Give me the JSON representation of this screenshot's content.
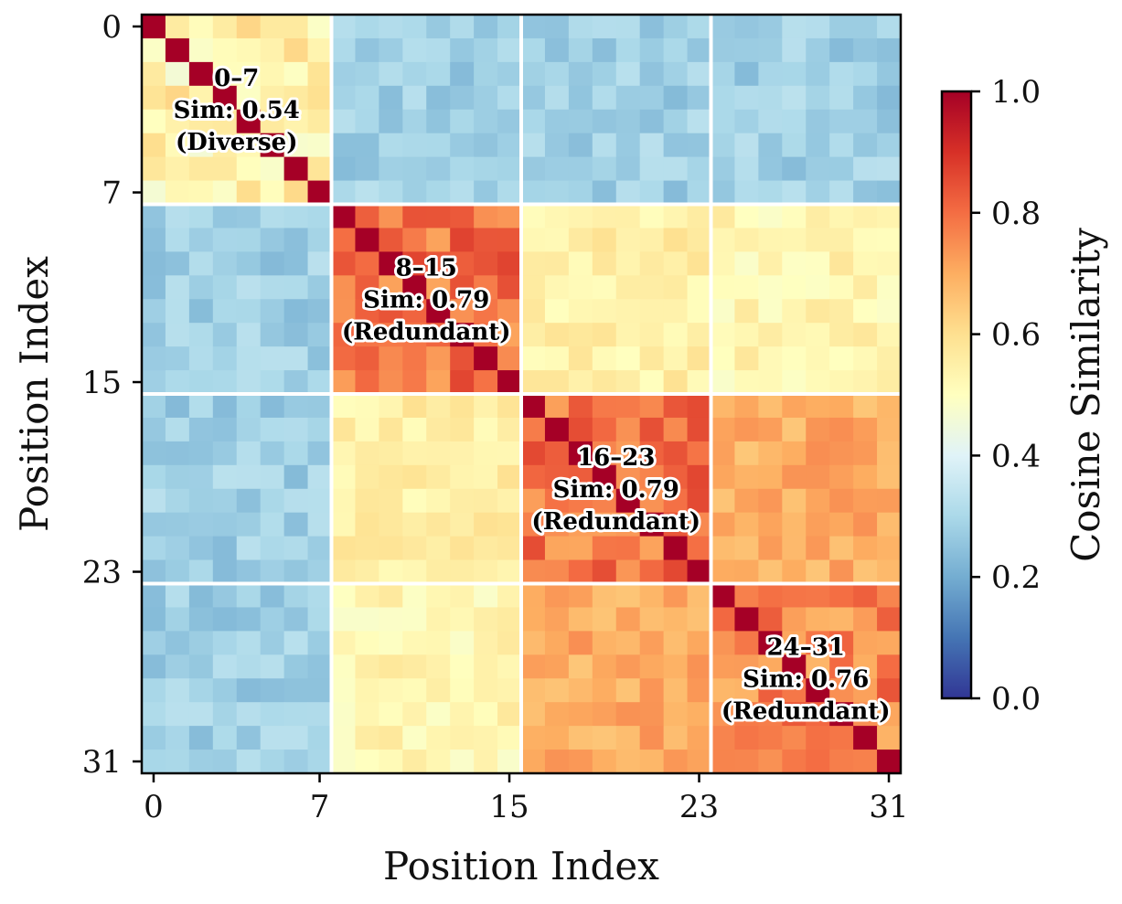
{
  "chart_data": {
    "type": "heatmap",
    "title": "",
    "xlabel": "Position Index",
    "ylabel": "Position Index",
    "n": 32,
    "x_ticks": [
      0,
      7,
      15,
      23,
      31
    ],
    "y_ticks": [
      0,
      7,
      15,
      23,
      31
    ],
    "block_boundaries": [
      7.5,
      15.5,
      23.5
    ],
    "colorbar": {
      "label": "Cosine Similarity",
      "range": [
        0.0,
        1.0
      ],
      "ticks": [
        "0.0",
        "0.2",
        "0.4",
        "0.6",
        "0.8",
        "1.0"
      ],
      "colormap": "RdYlBu_r"
    },
    "block_similarity": [
      [
        0.54,
        0.28,
        0.28,
        0.28
      ],
      [
        0.28,
        0.79,
        0.55,
        0.53
      ],
      [
        0.28,
        0.55,
        0.79,
        0.7
      ],
      [
        0.28,
        0.53,
        0.7,
        0.76
      ]
    ],
    "annotations": [
      {
        "range": "0–7",
        "sim": "Sim: 0.54",
        "note": "(Diverse)",
        "center_index": 3.5
      },
      {
        "range": "8–15",
        "sim": "Sim: 0.79",
        "note": "(Redundant)",
        "center_index": 11.5
      },
      {
        "range": "16–23",
        "sim": "Sim: 0.79",
        "note": "(Redundant)",
        "center_index": 19.5
      },
      {
        "range": "24–31",
        "sim": "Sim: 0.76",
        "note": "(Redundant)",
        "center_index": 27.5
      }
    ]
  }
}
